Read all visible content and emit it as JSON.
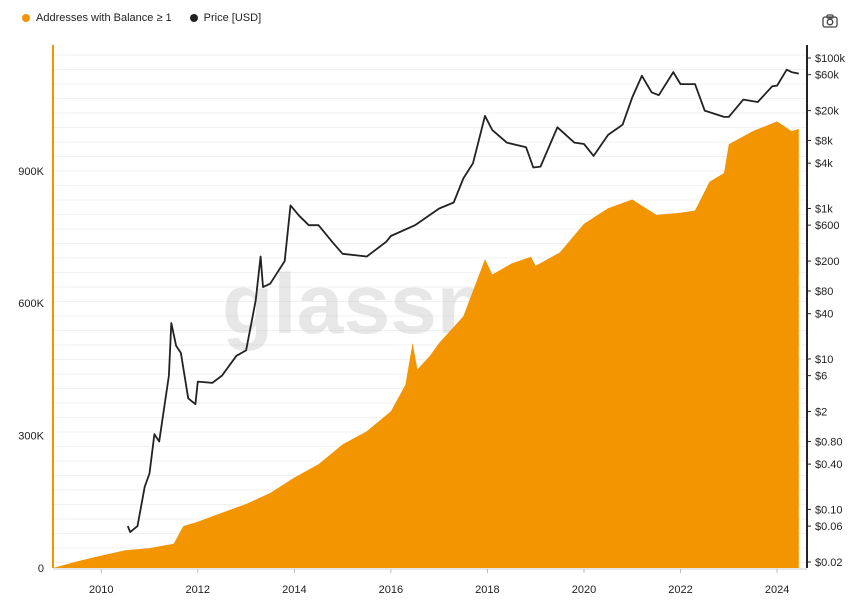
{
  "watermark": "glassn",
  "icons": {
    "camera": "camera-icon"
  },
  "chart_data": {
    "type": "area",
    "title": "",
    "legend_position": "top-left",
    "grid": true,
    "x_ticks": [
      2010,
      2012,
      2014,
      2016,
      2018,
      2020,
      2022,
      2024
    ],
    "y_left": {
      "ticks": [
        0,
        300000,
        600000,
        900000
      ],
      "tick_labels": [
        "0",
        "300K",
        "600K",
        "900K"
      ],
      "range": [
        0,
        1185000
      ]
    },
    "y_right": {
      "scale": "log",
      "ticks": [
        0.02,
        0.06,
        0.1,
        0.4,
        0.8,
        2,
        6,
        10,
        40,
        80,
        200,
        600,
        1000,
        4000,
        8000,
        20000,
        60000,
        100000
      ],
      "tick_labels": [
        "$0.02",
        "$0.06",
        "$0.10",
        "$0.40",
        "$0.80",
        "$2",
        "$6",
        "$10",
        "$40",
        "$80",
        "$200",
        "$600",
        "$1k",
        "$4k",
        "$8k",
        "$20k",
        "$60k",
        "$100k"
      ],
      "range": [
        0.02,
        100000
      ]
    },
    "series": [
      {
        "name": "Addresses with Balance ≥ 1",
        "axis": "left",
        "type": "area",
        "color": "#f39500",
        "points": [
          [
            2009.0,
            0
          ],
          [
            2009.5,
            15000
          ],
          [
            2010.0,
            28000
          ],
          [
            2010.5,
            40000
          ],
          [
            2011.0,
            45000
          ],
          [
            2011.5,
            55000
          ],
          [
            2011.7,
            95000
          ],
          [
            2012.0,
            105000
          ],
          [
            2012.5,
            125000
          ],
          [
            2013.0,
            145000
          ],
          [
            2013.5,
            170000
          ],
          [
            2014.0,
            205000
          ],
          [
            2014.5,
            235000
          ],
          [
            2015.0,
            280000
          ],
          [
            2015.5,
            310000
          ],
          [
            2016.0,
            355000
          ],
          [
            2016.3,
            415000
          ],
          [
            2016.45,
            510000
          ],
          [
            2016.55,
            450000
          ],
          [
            2016.8,
            480000
          ],
          [
            2017.0,
            510000
          ],
          [
            2017.5,
            570000
          ],
          [
            2017.95,
            700000
          ],
          [
            2018.1,
            665000
          ],
          [
            2018.5,
            690000
          ],
          [
            2018.9,
            705000
          ],
          [
            2019.0,
            685000
          ],
          [
            2019.5,
            715000
          ],
          [
            2020.0,
            780000
          ],
          [
            2020.5,
            815000
          ],
          [
            2021.0,
            835000
          ],
          [
            2021.5,
            800000
          ],
          [
            2022.0,
            805000
          ],
          [
            2022.3,
            810000
          ],
          [
            2022.6,
            875000
          ],
          [
            2022.9,
            895000
          ],
          [
            2023.0,
            960000
          ],
          [
            2023.5,
            990000
          ],
          [
            2024.0,
            1012000
          ],
          [
            2024.3,
            990000
          ],
          [
            2024.45,
            995000
          ]
        ]
      },
      {
        "name": "Price [USD]",
        "axis": "right",
        "type": "line",
        "color": "#222222",
        "points": [
          [
            2010.55,
            0.06
          ],
          [
            2010.6,
            0.05
          ],
          [
            2010.75,
            0.06
          ],
          [
            2010.9,
            0.2
          ],
          [
            2011.0,
            0.3
          ],
          [
            2011.1,
            1
          ],
          [
            2011.2,
            0.8
          ],
          [
            2011.4,
            6
          ],
          [
            2011.45,
            30
          ],
          [
            2011.55,
            15
          ],
          [
            2011.65,
            12
          ],
          [
            2011.8,
            3
          ],
          [
            2011.95,
            2.5
          ],
          [
            2012.0,
            5
          ],
          [
            2012.3,
            4.8
          ],
          [
            2012.5,
            6
          ],
          [
            2012.8,
            11
          ],
          [
            2013.0,
            13
          ],
          [
            2013.2,
            60
          ],
          [
            2013.3,
            230
          ],
          [
            2013.35,
            90
          ],
          [
            2013.5,
            100
          ],
          [
            2013.8,
            200
          ],
          [
            2013.92,
            1100
          ],
          [
            2014.1,
            800
          ],
          [
            2014.3,
            600
          ],
          [
            2014.5,
            600
          ],
          [
            2014.8,
            350
          ],
          [
            2015.0,
            250
          ],
          [
            2015.5,
            230
          ],
          [
            2015.9,
            360
          ],
          [
            2016.0,
            430
          ],
          [
            2016.5,
            600
          ],
          [
            2016.9,
            900
          ],
          [
            2017.0,
            1000
          ],
          [
            2017.3,
            1200
          ],
          [
            2017.5,
            2500
          ],
          [
            2017.7,
            4000
          ],
          [
            2017.95,
            17000
          ],
          [
            2018.1,
            11000
          ],
          [
            2018.4,
            7500
          ],
          [
            2018.8,
            6500
          ],
          [
            2018.95,
            3500
          ],
          [
            2019.1,
            3600
          ],
          [
            2019.45,
            12000
          ],
          [
            2019.8,
            7500
          ],
          [
            2020.0,
            7200
          ],
          [
            2020.2,
            5000
          ],
          [
            2020.5,
            9500
          ],
          [
            2020.8,
            13000
          ],
          [
            2021.0,
            30000
          ],
          [
            2021.2,
            58000
          ],
          [
            2021.4,
            35000
          ],
          [
            2021.55,
            32000
          ],
          [
            2021.85,
            65000
          ],
          [
            2022.0,
            45000
          ],
          [
            2022.3,
            45000
          ],
          [
            2022.5,
            20000
          ],
          [
            2022.9,
            16500
          ],
          [
            2023.0,
            16500
          ],
          [
            2023.3,
            28000
          ],
          [
            2023.6,
            26000
          ],
          [
            2023.9,
            42000
          ],
          [
            2024.0,
            43000
          ],
          [
            2024.2,
            70000
          ],
          [
            2024.3,
            65000
          ],
          [
            2024.45,
            62000
          ]
        ]
      }
    ]
  }
}
